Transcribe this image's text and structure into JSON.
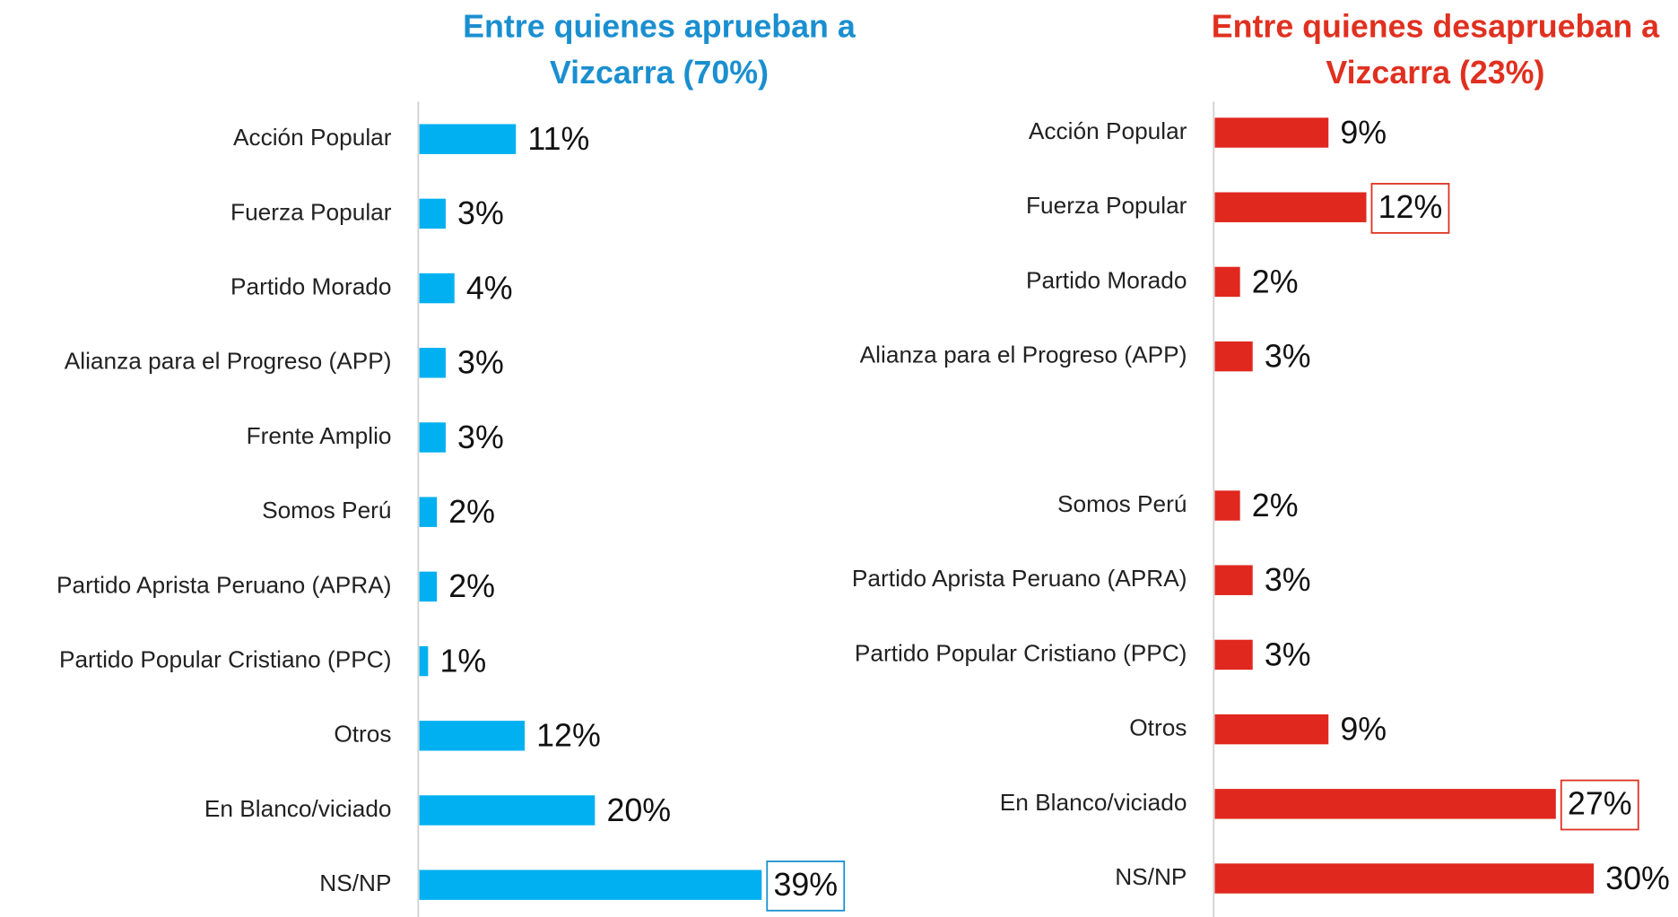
{
  "chart_data": [
    {
      "type": "barh",
      "title": [
        "Entre quienes aprueban a",
        "Vizcarra (70%)"
      ],
      "title_color": "#1a8fd0",
      "color": "#00b0f0",
      "categories": [
        "Acción Popular",
        "Fuerza Popular",
        "Partido Morado",
        "Alianza para el Progreso (APP)",
        "Frente Amplio",
        "Somos Perú",
        "Partido Aprista Peruano (APRA)",
        "Partido Popular Cristiano (PPC)",
        "Otros",
        "En Blanco/viciado",
        "NS/NP"
      ],
      "values": [
        11,
        3,
        4,
        3,
        3,
        2,
        2,
        1,
        12,
        20,
        39
      ],
      "value_labels": [
        "11%",
        "3%",
        "4%",
        "3%",
        "3%",
        "2%",
        "2%",
        "1%",
        "12%",
        "20%",
        "39%"
      ],
      "highlighted": [
        10
      ]
    },
    {
      "type": "barh",
      "title": [
        "Entre quienes desaprueban a",
        "Vizcarra (23%)"
      ],
      "title_color": "#e03020",
      "color": "#e0281e",
      "categories": [
        "Acción Popular",
        "Fuerza Popular",
        "Partido Morado",
        "Alianza para el Progreso (APP)",
        null,
        "Somos Perú",
        "Partido Aprista Peruano (APRA)",
        "Partido Popular Cristiano (PPC)",
        "Otros",
        "En Blanco/viciado",
        "NS/NP"
      ],
      "values": [
        9,
        12,
        2,
        3,
        null,
        2,
        3,
        3,
        9,
        27,
        30
      ],
      "value_labels": [
        "9%",
        "12%",
        "2%",
        "3%",
        null,
        "2%",
        "3%",
        "3%",
        "9%",
        "27%",
        "30%"
      ],
      "highlighted": [
        1,
        9
      ]
    }
  ]
}
